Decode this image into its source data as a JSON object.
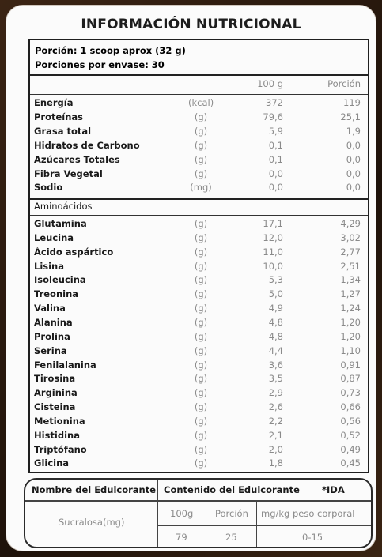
{
  "title": "INFORMACIÓN NUTRICIONAL",
  "serving": {
    "portion": "Porción: 1 scoop aprox (32 g)",
    "per_container": "Porciones por envase: 30"
  },
  "columns": {
    "per100": "100 g",
    "portion": "Porción"
  },
  "nutrients": [
    {
      "name": "Energía",
      "unit": "(kcal)",
      "per100": "372",
      "portion": "119"
    },
    {
      "name": "Proteínas",
      "unit": "(g)",
      "per100": "79,6",
      "portion": "25,1"
    },
    {
      "name": "Grasa total",
      "unit": "(g)",
      "per100": "5,9",
      "portion": "1,9"
    },
    {
      "name": "Hidratos de Carbono",
      "unit": "(g)",
      "per100": "0,1",
      "portion": "0,0"
    },
    {
      "name": "Azúcares Totales",
      "unit": "(g)",
      "per100": "0,1",
      "portion": "0,0"
    },
    {
      "name": "Fibra Vegetal",
      "unit": "(g)",
      "per100": "0,0",
      "portion": "0,0"
    },
    {
      "name": "Sodio",
      "unit": "(mg)",
      "per100": "0,0",
      "portion": "0,0"
    }
  ],
  "amino_header": "Aminoácidos",
  "amino_acids": [
    {
      "name": "Glutamina",
      "unit": "(g)",
      "per100": "17,1",
      "portion": "4,29"
    },
    {
      "name": "Leucina",
      "unit": "(g)",
      "per100": "12,0",
      "portion": "3,02"
    },
    {
      "name": "Ácido aspártico",
      "unit": "(g)",
      "per100": "11,0",
      "portion": "2,77"
    },
    {
      "name": "Lisina",
      "unit": "(g)",
      "per100": "10,0",
      "portion": "2,51"
    },
    {
      "name": "Isoleucina",
      "unit": "(g)",
      "per100": "5,3",
      "portion": "1,34"
    },
    {
      "name": "Treonina",
      "unit": "(g)",
      "per100": "5,0",
      "portion": "1,27"
    },
    {
      "name": "Valina",
      "unit": "(g)",
      "per100": "4,9",
      "portion": "1,24"
    },
    {
      "name": "Alanina",
      "unit": "(g)",
      "per100": "4,8",
      "portion": "1,20"
    },
    {
      "name": "Prolina",
      "unit": "(g)",
      "per100": "4,8",
      "portion": "1,20"
    },
    {
      "name": "Serina",
      "unit": "(g)",
      "per100": "4,4",
      "portion": "1,10"
    },
    {
      "name": "Fenilalanina",
      "unit": "(g)",
      "per100": "3,6",
      "portion": "0,91"
    },
    {
      "name": "Tirosina",
      "unit": "(g)",
      "per100": "3,5",
      "portion": "0,87"
    },
    {
      "name": "Arginina",
      "unit": "(g)",
      "per100": "2,9",
      "portion": "0,73"
    },
    {
      "name": "Cisteina",
      "unit": "(g)",
      "per100": "2,6",
      "portion": "0,66"
    },
    {
      "name": "Metionina",
      "unit": "(g)",
      "per100": "2,2",
      "portion": "0,56"
    },
    {
      "name": "Histidina",
      "unit": "(g)",
      "per100": "2,1",
      "portion": "0,52"
    },
    {
      "name": "Triptófano",
      "unit": "(g)",
      "per100": "2,0",
      "portion": "0,49"
    },
    {
      "name": "Glicina",
      "unit": "(g)",
      "per100": "1,8",
      "portion": "0,45"
    }
  ],
  "sweetener": {
    "name_header": "Nombre del Edulcorante",
    "content_header": "Contenido del Edulcorante",
    "ida_header": "*IDA",
    "col_100g": "100g",
    "col_portion": "Porción",
    "col_ida": "mg/kg peso corporal",
    "name": "Sucralosa(mg)",
    "val_100g": "79",
    "val_portion": "25",
    "val_ida": "0-15"
  }
}
